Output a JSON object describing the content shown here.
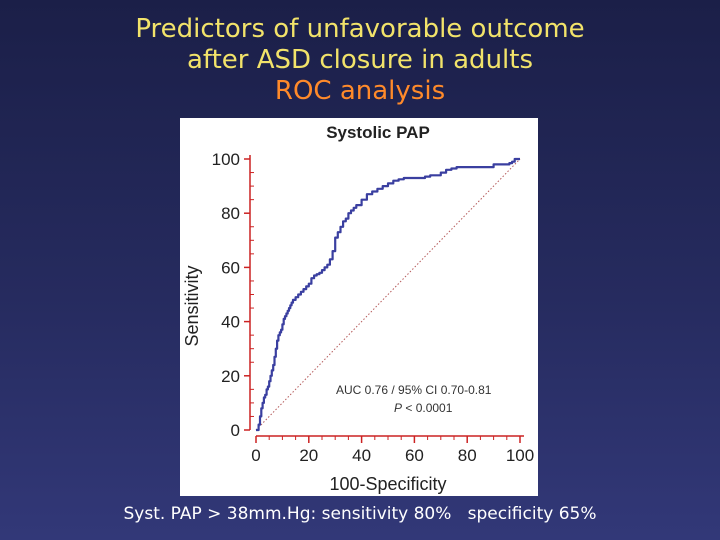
{
  "slide": {
    "title_line1": "Predictors of unfavorable outcome",
    "title_line2": "after ASD closure in adults",
    "title_line3": "ROC analysis",
    "footer_left": "Syst. PAP > 38mm.Hg: sensitivity 80%",
    "footer_right": "specificity 65%",
    "title_color": "#f2e36a",
    "accent_color": "#ff8a2a"
  },
  "chart_data": {
    "type": "line",
    "title": "Systolic PAP",
    "xlabel": "100-Specificity",
    "ylabel": "Sensitivity",
    "xlim": [
      0,
      100
    ],
    "ylim": [
      0,
      100
    ],
    "x_ticks": [
      0,
      20,
      40,
      60,
      80,
      100
    ],
    "y_ticks": [
      0,
      20,
      40,
      60,
      80,
      100
    ],
    "grid": false,
    "annotation_line1": "AUC 0.76 / 95% CI 0.70-0.81",
    "annotation_line2": "P < 0.0001",
    "roc_color": "#3a3fa0",
    "axis_color": "#cc2222",
    "series": [
      {
        "type": "step",
        "x": [
          0,
          1,
          1.5,
          2,
          2.5,
          3,
          3.5,
          4,
          4.5,
          5,
          5.5,
          6,
          6.5,
          7,
          7.5,
          8,
          8.5,
          9,
          9.5,
          10,
          10.5,
          11,
          11.5,
          12,
          12.5,
          13,
          13.5,
          14,
          15,
          16,
          17,
          18,
          19,
          20,
          21,
          22,
          23,
          24,
          25,
          26,
          27,
          28,
          29,
          30,
          31,
          32,
          33,
          34,
          35,
          36,
          37,
          38,
          40,
          42,
          44,
          46,
          48,
          50,
          52,
          54,
          56,
          58,
          60,
          62,
          64,
          66,
          68,
          70,
          72,
          74,
          76,
          78,
          80,
          82,
          84,
          86,
          88,
          90,
          92,
          94,
          96,
          97,
          98,
          99,
          100
        ],
        "y": [
          0,
          2,
          5,
          8,
          10,
          12,
          13,
          15,
          16,
          18,
          20,
          22,
          24,
          27,
          30,
          33,
          35,
          36,
          37,
          39,
          41,
          42,
          43,
          44,
          45,
          46,
          47,
          48,
          49,
          50,
          51,
          52,
          53,
          54,
          56,
          57,
          57.5,
          58,
          59,
          60,
          61,
          63,
          66,
          71,
          73,
          75,
          77,
          78,
          80,
          81,
          82,
          83,
          85,
          87,
          88,
          89,
          90,
          91,
          92,
          92.5,
          93,
          93,
          93,
          93,
          93.5,
          94,
          94,
          95,
          96,
          96.5,
          97,
          97,
          97,
          97,
          97,
          97,
          97,
          98,
          98,
          98,
          98.5,
          99,
          100,
          100,
          100
        ]
      }
    ]
  }
}
